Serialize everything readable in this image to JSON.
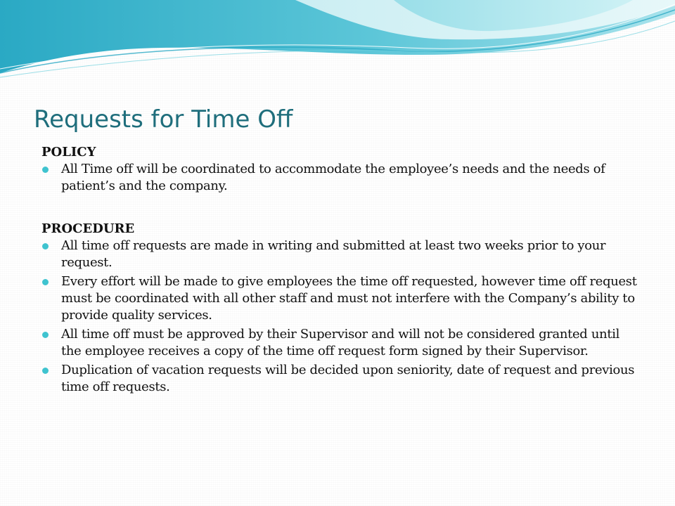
{
  "title": "Requests for Time Off",
  "policy": {
    "heading": "POLICY",
    "items": [
      "All Time off will be coordinated to accommodate the employee’s needs and the needs of patient’s and the company."
    ]
  },
  "procedure": {
    "heading": "PROCEDURE",
    "items": [
      "All time off requests are made in writing and submitted at least two weeks prior to your request.",
      "Every effort will be made to give employees the time off requested, however time off request must be coordinated with all other staff and must not interfere with the Company’s ability to provide quality services.",
      "All time off must be approved by their Supervisor and will not be considered granted until the employee receives a copy of the time off request form signed by their Supervisor.",
      "Duplication of vacation requests will be decided upon seniority, date of request and previous time off requests."
    ]
  },
  "colors": {
    "title": "#1f6e7c",
    "bullet": "#3fc3cf",
    "wave_light": "#b9eaf0",
    "wave_mid": "#6fd0dd",
    "wave_dark": "#2aa9c4"
  }
}
